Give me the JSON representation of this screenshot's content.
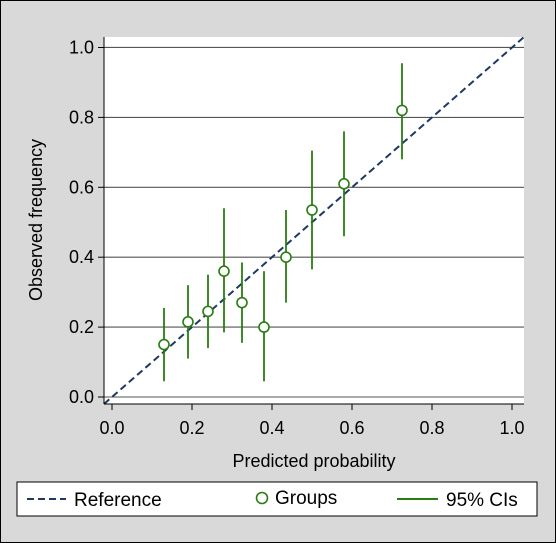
{
  "chart_data": {
    "type": "scatter",
    "xlabel": "Predicted probability",
    "ylabel": "Observed frequency",
    "xlim": [
      -0.02,
      1.03
    ],
    "ylim": [
      -0.02,
      1.03
    ],
    "x_ticks": [
      "0.0",
      "0.2",
      "0.4",
      "0.6",
      "0.8",
      "1.0"
    ],
    "y_ticks": [
      "0.0",
      "0.2",
      "0.4",
      "0.6",
      "0.8",
      "1.0"
    ],
    "grid": "horizontal",
    "legend_position": "bottom",
    "series": [
      {
        "name": "Reference",
        "type": "line",
        "style": "dashed",
        "color": "#1f3864",
        "x": [
          -0.02,
          1.03
        ],
        "y": [
          -0.02,
          1.03
        ]
      },
      {
        "name": "Groups",
        "type": "scatter",
        "marker": "hollow-circle",
        "color": "#2a7d12",
        "points": [
          {
            "x": 0.13,
            "y": 0.15
          },
          {
            "x": 0.19,
            "y": 0.215
          },
          {
            "x": 0.24,
            "y": 0.245
          },
          {
            "x": 0.28,
            "y": 0.36
          },
          {
            "x": 0.325,
            "y": 0.27
          },
          {
            "x": 0.38,
            "y": 0.2
          },
          {
            "x": 0.435,
            "y": 0.4
          },
          {
            "x": 0.5,
            "y": 0.535
          },
          {
            "x": 0.58,
            "y": 0.61
          },
          {
            "x": 0.725,
            "y": 0.82
          }
        ]
      },
      {
        "name": "95% CIs",
        "type": "errorbar",
        "color": "#2a7d12",
        "intervals": [
          {
            "x": 0.13,
            "low": 0.045,
            "high": 0.255
          },
          {
            "x": 0.19,
            "low": 0.11,
            "high": 0.32
          },
          {
            "x": 0.24,
            "low": 0.14,
            "high": 0.35
          },
          {
            "x": 0.28,
            "low": 0.185,
            "high": 0.54
          },
          {
            "x": 0.325,
            "low": 0.155,
            "high": 0.385
          },
          {
            "x": 0.38,
            "low": 0.045,
            "high": 0.36
          },
          {
            "x": 0.435,
            "low": 0.27,
            "high": 0.535
          },
          {
            "x": 0.5,
            "low": 0.365,
            "high": 0.705
          },
          {
            "x": 0.58,
            "low": 0.46,
            "high": 0.76
          },
          {
            "x": 0.725,
            "low": 0.68,
            "high": 0.955
          }
        ]
      }
    ]
  },
  "legend": {
    "items": [
      {
        "label": "Reference",
        "symbol": "dashed-line"
      },
      {
        "label": "Groups",
        "symbol": "hollow-circle"
      },
      {
        "label": "95% CIs",
        "symbol": "solid-line"
      }
    ]
  }
}
